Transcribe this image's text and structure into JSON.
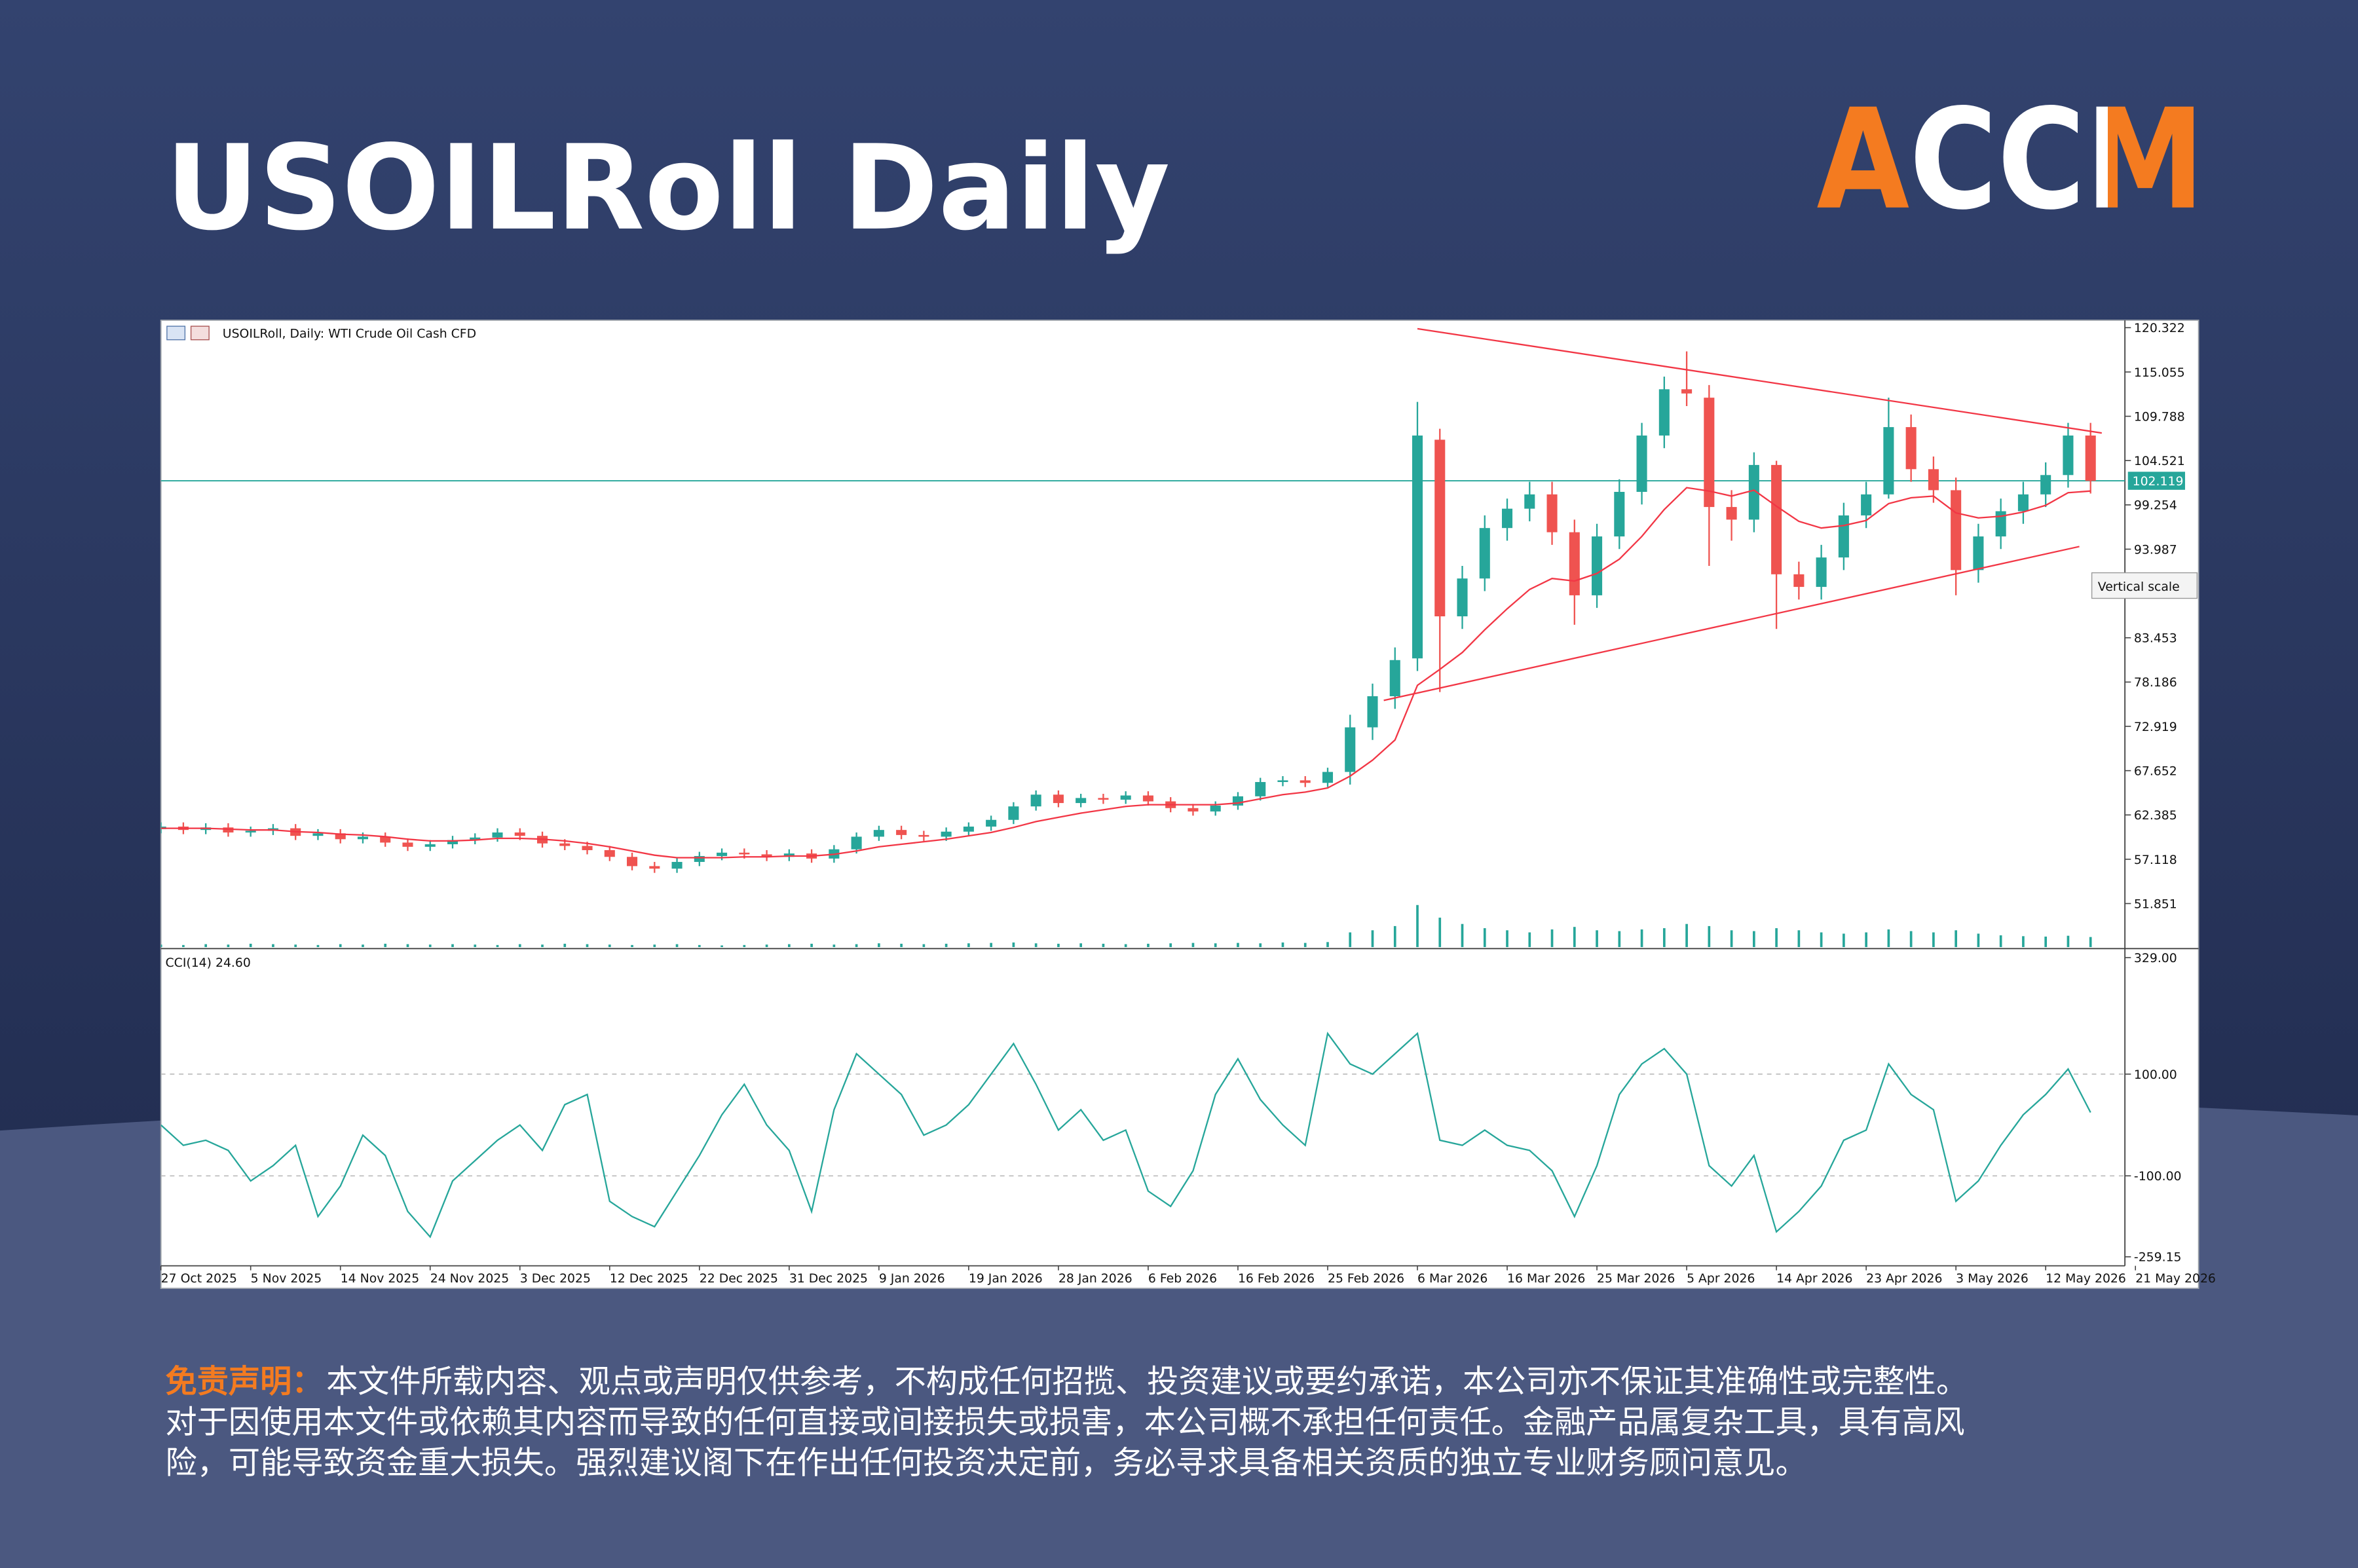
{
  "title": "USOILRoll Daily",
  "logo": "ACCM",
  "chart_data": {
    "type": "candlestick",
    "header": "USOILRoll, Daily:  WTI Crude Oil Cash CFD",
    "xlim": [
      0,
      88
    ],
    "xticks": [
      {
        "value": 0,
        "label": "27 Oct 2025"
      },
      {
        "value": 4,
        "label": "5 Nov 2025"
      },
      {
        "value": 8,
        "label": "14 Nov 2025"
      },
      {
        "value": 12,
        "label": "24 Nov 2025"
      },
      {
        "value": 16,
        "label": "3 Dec 2025"
      },
      {
        "value": 20,
        "label": "12 Dec 2025"
      },
      {
        "value": 24,
        "label": "22 Dec 2025"
      },
      {
        "value": 28,
        "label": "31 Dec 2025"
      },
      {
        "value": 32,
        "label": "9 Jan 2026"
      },
      {
        "value": 36,
        "label": "19 Jan 2026"
      },
      {
        "value": 40,
        "label": "28 Jan 2026"
      },
      {
        "value": 44,
        "label": "6 Feb 2026"
      },
      {
        "value": 48,
        "label": "16 Feb 2026"
      },
      {
        "value": 52,
        "label": "25 Feb 2026"
      },
      {
        "value": 56,
        "label": "6 Mar 2026"
      },
      {
        "value": 60,
        "label": "16 Mar 2026"
      },
      {
        "value": 64,
        "label": "25 Mar 2026"
      },
      {
        "value": 68,
        "label": "5 Apr 2026"
      },
      {
        "value": 72,
        "label": "14 Apr 2026"
      },
      {
        "value": 76,
        "label": "23 Apr 2026"
      },
      {
        "value": 80,
        "label": "3 May 2026"
      },
      {
        "value": 84,
        "label": "12 May 2026"
      },
      {
        "value": 88,
        "label": "21 May 2026"
      }
    ],
    "open": [
      60.7,
      61.0,
      60.6,
      60.9,
      60.3,
      60.5,
      60.8,
      59.9,
      60.2,
      59.5,
      59.8,
      59.1,
      58.6,
      58.9,
      59.4,
      59.7,
      60.3,
      59.9,
      59.0,
      58.7,
      58.2,
      57.4,
      56.3,
      56.0,
      56.8,
      57.5,
      57.9,
      57.7,
      57.4,
      57.8,
      57.2,
      58.3,
      59.8,
      60.6,
      60.0,
      59.8,
      60.4,
      61.0,
      61.8,
      63.4,
      64.8,
      63.8,
      64.4,
      64.2,
      64.7,
      64.0,
      63.2,
      62.8,
      63.5,
      64.6,
      66.3,
      66.5,
      66.2,
      67.5,
      72.8,
      76.5,
      81.0,
      107.0,
      86.0,
      90.5,
      96.5,
      98.8,
      100.5,
      96.0,
      88.5,
      95.5,
      100.8,
      107.5,
      113.0,
      112.0,
      99.0,
      97.5,
      104.0,
      91.0,
      89.5,
      93.0,
      98.0,
      100.5,
      108.5,
      103.5,
      101.0,
      91.5,
      95.5,
      98.5,
      100.5,
      102.8,
      107.5
    ],
    "high": [
      61.5,
      61.5,
      61.4,
      61.4,
      61.0,
      61.3,
      61.3,
      60.7,
      60.7,
      60.3,
      60.3,
      59.6,
      59.4,
      59.9,
      60.2,
      60.8,
      60.8,
      60.4,
      59.5,
      59.2,
      58.7,
      57.9,
      56.8,
      57.3,
      58.0,
      58.4,
      58.4,
      58.2,
      58.3,
      58.3,
      58.8,
      60.3,
      61.1,
      61.1,
      60.5,
      60.9,
      61.5,
      62.3,
      63.9,
      65.3,
      65.3,
      64.9,
      64.9,
      65.2,
      65.2,
      64.5,
      63.7,
      64.0,
      65.1,
      66.8,
      67.0,
      67.0,
      68.0,
      74.3,
      78.0,
      82.3,
      111.5,
      108.3,
      92.0,
      98.0,
      100.0,
      102.0,
      102.0,
      97.5,
      97.0,
      102.3,
      109.0,
      114.5,
      117.5,
      113.5,
      101.0,
      105.5,
      104.5,
      92.5,
      94.5,
      99.5,
      102.0,
      112.0,
      110.0,
      105.0,
      102.5,
      97.0,
      100.0,
      102.0,
      104.3,
      109.0,
      109.0
    ],
    "low": [
      60.2,
      60.1,
      60.1,
      59.8,
      59.8,
      60.0,
      59.4,
      59.4,
      59.0,
      59.0,
      58.6,
      58.1,
      58.1,
      58.4,
      58.9,
      59.2,
      59.4,
      58.5,
      58.2,
      57.7,
      56.9,
      55.8,
      55.5,
      55.5,
      56.3,
      57.0,
      57.2,
      56.9,
      56.9,
      56.7,
      56.7,
      57.8,
      59.3,
      59.5,
      59.3,
      59.3,
      59.9,
      60.5,
      61.3,
      62.9,
      63.3,
      63.3,
      63.7,
      63.7,
      63.5,
      62.7,
      62.3,
      62.3,
      63.0,
      64.1,
      65.8,
      65.7,
      65.7,
      66.0,
      71.3,
      75.0,
      79.5,
      77.0,
      84.5,
      89.0,
      95.0,
      97.3,
      94.5,
      85.0,
      87.0,
      94.0,
      99.3,
      106.0,
      111.0,
      92.0,
      95.0,
      96.0,
      84.5,
      88.0,
      88.0,
      91.5,
      96.5,
      100.0,
      102.0,
      99.5,
      88.5,
      90.0,
      94.0,
      97.0,
      99.0,
      101.3,
      100.6
    ],
    "close": [
      61.0,
      60.6,
      60.9,
      60.3,
      60.5,
      60.8,
      59.9,
      60.2,
      59.5,
      59.8,
      59.1,
      58.6,
      58.9,
      59.4,
      59.7,
      60.3,
      59.9,
      59.0,
      58.7,
      58.2,
      57.4,
      56.3,
      56.0,
      56.8,
      57.5,
      57.9,
      57.7,
      57.4,
      57.8,
      57.2,
      58.3,
      59.8,
      60.6,
      60.0,
      59.8,
      60.4,
      61.0,
      61.8,
      63.4,
      64.8,
      63.8,
      64.4,
      64.2,
      64.7,
      64.0,
      63.2,
      62.8,
      63.5,
      64.6,
      66.3,
      66.5,
      66.2,
      67.5,
      72.8,
      76.5,
      80.8,
      107.5,
      86.0,
      90.5,
      96.5,
      98.8,
      100.5,
      96.0,
      88.5,
      95.5,
      100.8,
      107.5,
      113.0,
      112.5,
      99.0,
      97.5,
      104.0,
      91.0,
      89.5,
      93.0,
      98.0,
      100.5,
      108.5,
      103.5,
      101.0,
      91.5,
      95.5,
      98.5,
      100.5,
      102.8,
      107.5,
      102.1
    ],
    "ma": [
      60.8,
      60.8,
      60.8,
      60.7,
      60.6,
      60.6,
      60.4,
      60.3,
      60.1,
      60.0,
      59.8,
      59.5,
      59.3,
      59.3,
      59.4,
      59.6,
      59.6,
      59.5,
      59.3,
      59.0,
      58.6,
      58.1,
      57.6,
      57.3,
      57.3,
      57.3,
      57.4,
      57.4,
      57.5,
      57.5,
      57.7,
      58.1,
      58.6,
      58.9,
      59.2,
      59.5,
      59.9,
      60.3,
      60.9,
      61.6,
      62.1,
      62.6,
      63.0,
      63.4,
      63.6,
      63.6,
      63.6,
      63.6,
      63.8,
      64.3,
      64.8,
      65.1,
      65.6,
      67.0,
      68.9,
      71.3,
      77.8,
      79.7,
      81.7,
      84.4,
      86.9,
      89.2,
      90.5,
      90.2,
      91.1,
      92.8,
      95.5,
      98.7,
      101.3,
      100.9,
      100.3,
      101.0,
      99.1,
      97.3,
      96.5,
      96.8,
      97.4,
      99.4,
      100.1,
      100.3,
      98.3,
      97.7,
      97.9,
      98.4,
      99.2,
      100.7,
      100.9
    ],
    "volume": [
      6,
      5,
      7,
      6,
      8,
      7,
      6,
      5,
      7,
      6,
      8,
      7,
      6,
      7,
      6,
      5,
      7,
      6,
      8,
      7,
      6,
      5,
      6,
      7,
      5,
      4,
      5,
      6,
      7,
      8,
      6,
      7,
      9,
      8,
      7,
      8,
      9,
      10,
      11,
      9,
      8,
      9,
      8,
      7,
      8,
      9,
      10,
      9,
      10,
      9,
      11,
      10,
      12,
      35,
      40,
      50,
      100,
      70,
      55,
      45,
      40,
      35,
      42,
      48,
      40,
      38,
      42,
      45,
      55,
      50,
      40,
      38,
      45,
      40,
      35,
      32,
      35,
      42,
      38,
      35,
      40,
      32,
      28,
      26,
      25,
      27,
      24
    ],
    "color_up": "#26a69a",
    "color_down": "#ef5350",
    "ma_color": "#f23645",
    "volume_color": "#26a69a",
    "ylim": [
      46.67,
      121.21
    ],
    "yticks": [
      120.322,
      115.055,
      109.788,
      104.521,
      99.254,
      93.987,
      83.453,
      78.186,
      72.919,
      67.652,
      62.385,
      57.118,
      51.851
    ],
    "last_price": 102.119,
    "last_price_color": "#26a69a",
    "trendline_color": "#f23645",
    "trendlines": [
      {
        "x": [
          56,
          86.5
        ],
        "y": [
          120.2,
          107.8
        ]
      },
      {
        "x": [
          54.5,
          85.5
        ],
        "y": [
          76.0,
          94.3
        ]
      }
    ],
    "tooltip": "Vertical scale",
    "indicator": {
      "title": "CCI(14) 24.60",
      "color": "#26a69a",
      "values": [
        0,
        -40,
        -30,
        -50,
        -110,
        -80,
        -40,
        -180,
        -120,
        -20,
        -60,
        -170,
        -220,
        -110,
        -70,
        -30,
        0,
        -50,
        40,
        60,
        -150,
        -180,
        -200,
        -130,
        -60,
        20,
        80,
        0,
        -50,
        -170,
        30,
        140,
        100,
        60,
        -20,
        0,
        40,
        100,
        160,
        80,
        -10,
        30,
        -30,
        -10,
        -130,
        -160,
        -90,
        60,
        130,
        50,
        0,
        -40,
        180,
        120,
        100,
        140,
        180,
        -30,
        -40,
        -10,
        -40,
        -50,
        -90,
        -180,
        -80,
        60,
        120,
        150,
        100,
        -80,
        -120,
        -60,
        -210,
        -170,
        -120,
        -30,
        -10,
        120,
        60,
        30,
        -150,
        -110,
        -40,
        20,
        60,
        110,
        24.6
      ],
      "ylim": [
        -276.9,
        343.8
      ],
      "yticks": [
        {
          "value": 329,
          "label": "329.00"
        },
        {
          "value": 100,
          "label": "100.00"
        },
        {
          "value": -100,
          "label": "-100.00"
        },
        {
          "value": -259.15,
          "label": "-259.15"
        }
      ]
    }
  },
  "disclaimer": {
    "label": "免责声明：",
    "lines": [
      "本文件所载内容、观点或声明仅供参考，不构成任何招揽、投资建议或要约承诺，本公司亦不保证其准确性或完整性。",
      "对于因使用本文件或依赖其内容而导致的任何直接或间接损失或损害，本公司概不承担任何责任。金融产品属复杂工具，具有高风",
      "险，可能导致资金重大损失。强烈建议阁下在作出任何投资决定前，务必寻求具备相关资质的独立专业财务顾问意见。"
    ]
  }
}
